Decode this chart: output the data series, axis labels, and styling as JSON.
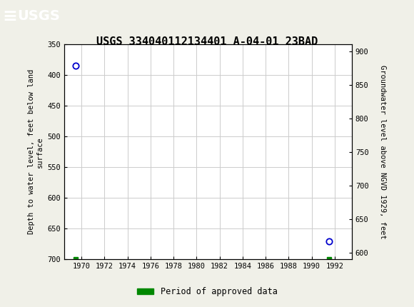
{
  "title": "USGS 334040112134401 A-04-01 23BAD",
  "ylabel_left": "Depth to water level, feet below land\nsurface",
  "ylabel_right": "Groundwater level above NGVD 1929, feet",
  "xlim": [
    1968.5,
    1993.5
  ],
  "ylim_left": [
    350,
    700
  ],
  "ylim_right": [
    590,
    910
  ],
  "yticks_left": [
    350,
    400,
    450,
    500,
    550,
    600,
    650,
    700
  ],
  "yticks_right": [
    600,
    650,
    700,
    750,
    800,
    850,
    900
  ],
  "xticks": [
    1970,
    1972,
    1974,
    1976,
    1978,
    1980,
    1982,
    1984,
    1986,
    1988,
    1990,
    1992
  ],
  "data_points": [
    {
      "x": 1969.5,
      "y_left": 385
    },
    {
      "x": 1991.5,
      "y_left": 671
    }
  ],
  "green_ticks": [
    {
      "x": 1969.5
    },
    {
      "x": 1991.5
    }
  ],
  "header_color": "#1a6b3c",
  "point_color": "#0000cc",
  "grid_color": "#cccccc",
  "background_color": "#f0f0e8",
  "plot_bg_color": "#ffffff",
  "legend_label": "Period of approved data",
  "legend_color": "#008800",
  "usgs_text": "USGS"
}
